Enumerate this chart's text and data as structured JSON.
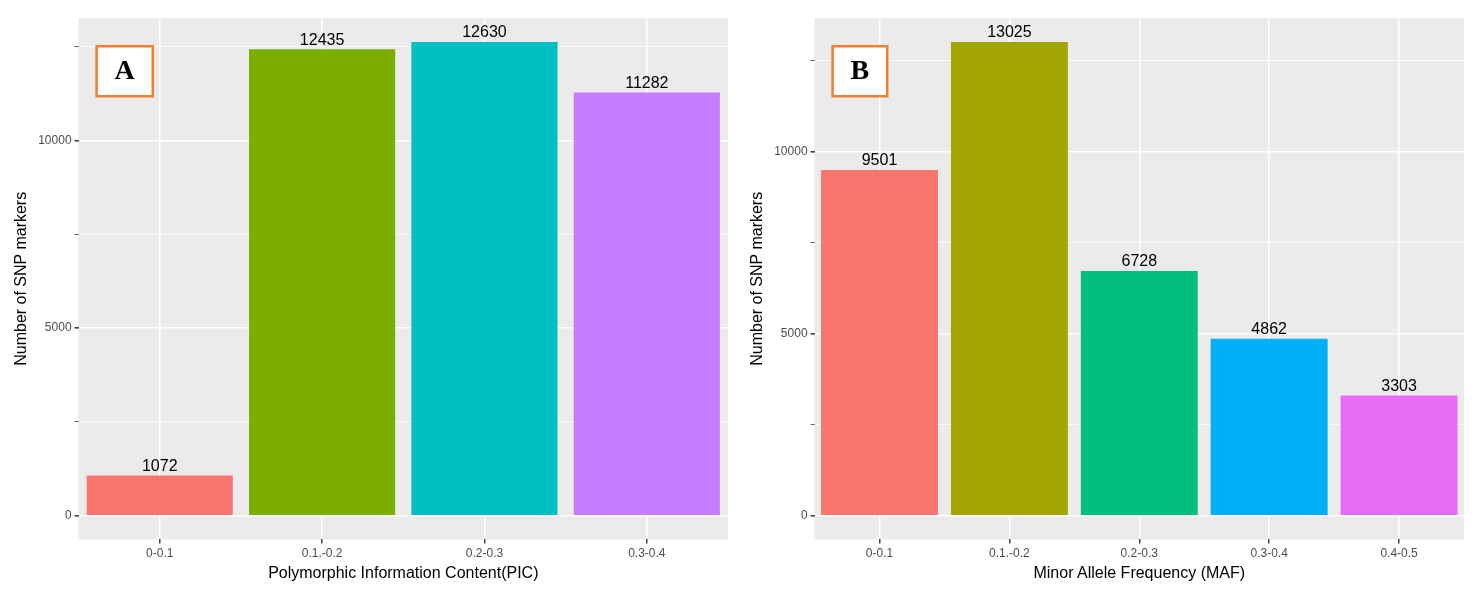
{
  "chart_data": [
    {
      "type": "bar",
      "annotations": [
        "A"
      ],
      "xlabel": "Polymorphic Information Content(PIC)",
      "ylabel": "Number of SNP markers",
      "categories": [
        "0-0.1",
        "0.1.-0.2",
        "0.2-0.3",
        "0.3-0.4"
      ],
      "values": [
        1072,
        12435,
        12630,
        11282
      ],
      "colors": [
        "#f8766d",
        "#7cae00",
        "#00bfc4",
        "#c77cff"
      ],
      "ylim": [
        -631.5,
        13261.5
      ],
      "yticks": [
        0,
        {
          "value": 2500,
          "label": null
        },
        5000,
        {
          "value": 7500,
          "label": null
        },
        10000,
        {
          "value": 12500,
          "label": null
        }
      ],
      "grid": true,
      "data_labels": true
    },
    {
      "type": "bar",
      "annotations": [
        "B"
      ],
      "xlabel": "Minor Allele Frequency (MAF)",
      "ylabel": "Number of SNP markers",
      "categories": [
        "0-0.1",
        "0.1.-0.2",
        "0.2-0.3",
        "0.3-0.4",
        "0.4-0.5"
      ],
      "values": [
        9501,
        13025,
        6728,
        4862,
        3303
      ],
      "colors": [
        "#f8766d",
        "#a3a500",
        "#00bf7d",
        "#00b0f6",
        "#e76bf3"
      ],
      "ylim": [
        -651.25,
        13676.25
      ],
      "yticks": [
        0,
        {
          "value": 2500,
          "label": null
        },
        5000,
        {
          "value": 7500,
          "label": null
        },
        10000,
        {
          "value": 12500,
          "label": null
        }
      ],
      "grid": true,
      "data_labels": true
    }
  ]
}
